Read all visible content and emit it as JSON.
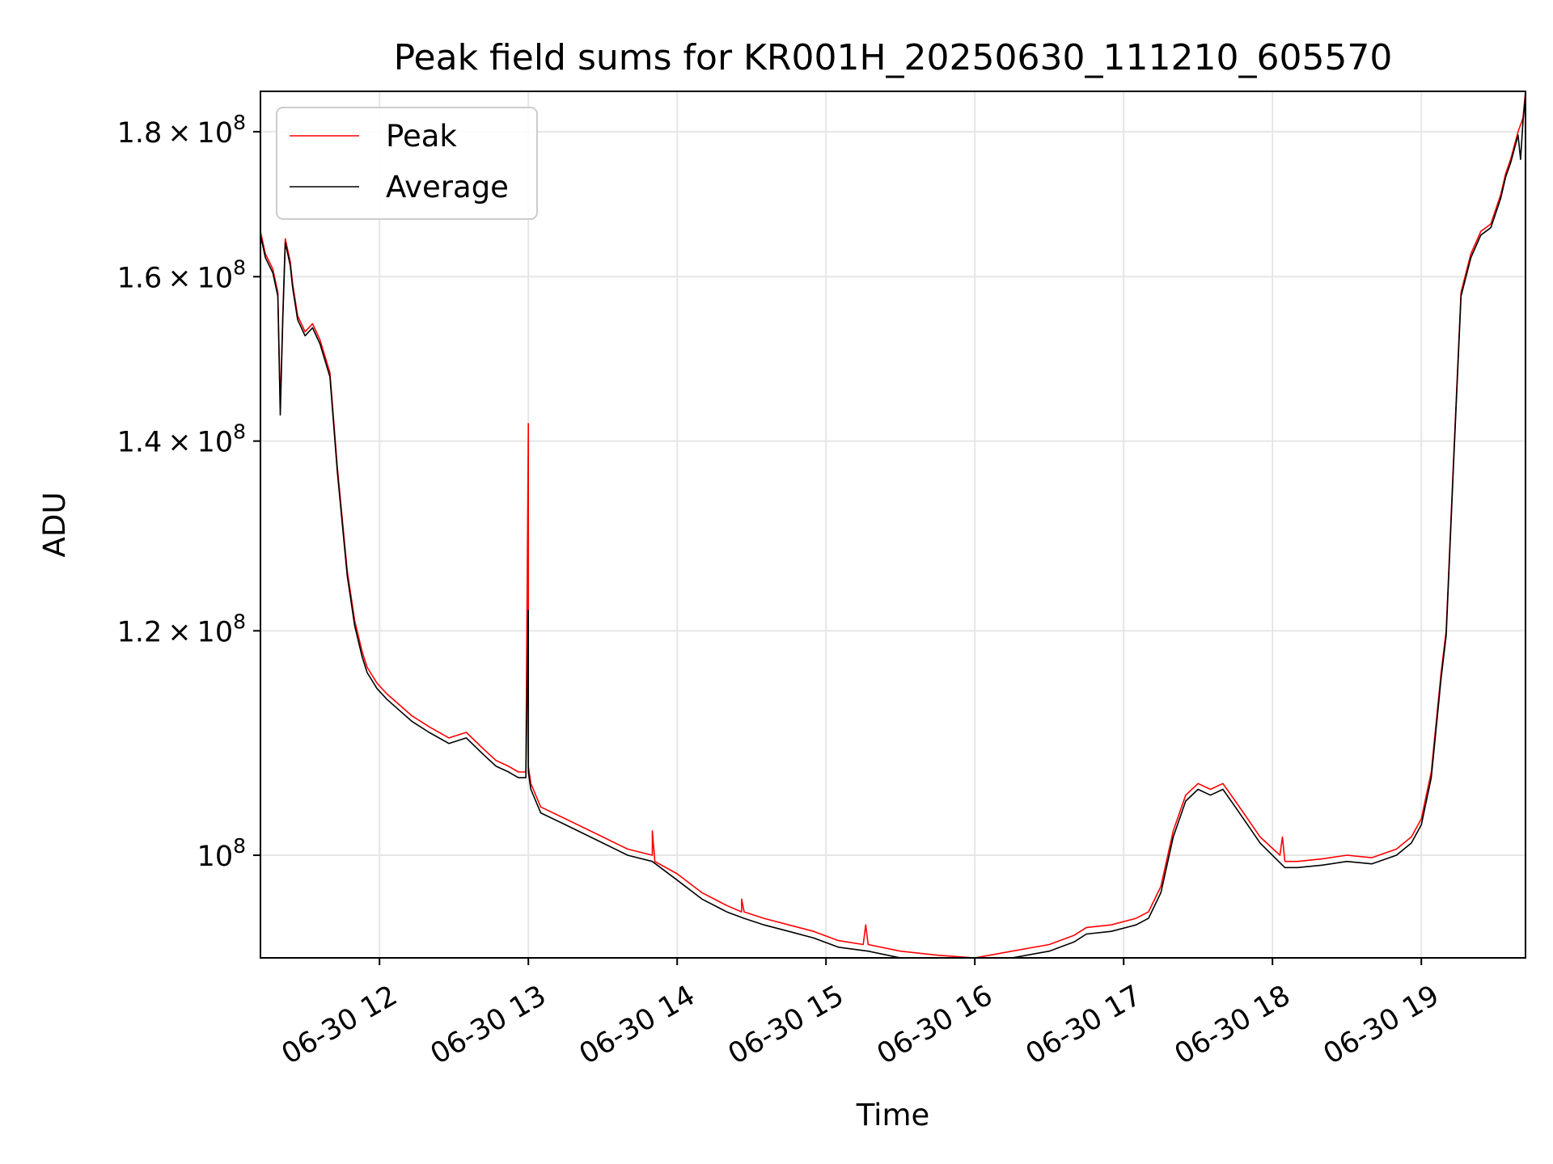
{
  "chart_data": {
    "type": "line",
    "title": "Peak field sums for KR001H_20250630_111210_605570",
    "xlabel": "Time",
    "ylabel": "ADU",
    "y_scale": "log",
    "grid": true,
    "legend_position": "top-left",
    "x_range": [
      "06-30 11:12",
      "06-30 19:42"
    ],
    "ylim": [
      92000000.0,
      186000000.0
    ],
    "x_ticks": [
      {
        "label": "06-30 12",
        "time": "12:00"
      },
      {
        "label": "06-30 13",
        "time": "13:00"
      },
      {
        "label": "06-30 14",
        "time": "14:00"
      },
      {
        "label": "06-30 15",
        "time": "15:00"
      },
      {
        "label": "06-30 16",
        "time": "16:00"
      },
      {
        "label": "06-30 17",
        "time": "17:00"
      },
      {
        "label": "06-30 18",
        "time": "18:00"
      },
      {
        "label": "06-30 19",
        "time": "19:00"
      }
    ],
    "y_ticks": [
      {
        "value": 100000000,
        "mantissa": "",
        "exponent": "8"
      },
      {
        "value": 120000000,
        "mantissa": "1.2",
        "exponent": "8"
      },
      {
        "value": 140000000,
        "mantissa": "1.4",
        "exponent": "8"
      },
      {
        "value": 160000000,
        "mantissa": "1.6",
        "exponent": "8"
      },
      {
        "value": 180000000,
        "mantissa": "1.8",
        "exponent": "8"
      }
    ],
    "tick_base": "10",
    "series": [
      {
        "name": "Peak",
        "color": "#ff0000",
        "x": [
          "11:12",
          "11:14",
          "11:17",
          "11:19",
          "11:20",
          "11:21",
          "11:22",
          "11:24",
          "11:25",
          "11:27",
          "11:30",
          "11:33",
          "11:36",
          "11:40",
          "11:43",
          "11:47",
          "11:50",
          "11:53",
          "11:55",
          "11:59",
          "12:03",
          "12:08",
          "12:13",
          "12:20",
          "12:28",
          "12:35",
          "12:42",
          "12:47",
          "12:52",
          "12:56",
          "12:59",
          "13:00",
          "13:00",
          "13:01",
          "13:05",
          "13:15",
          "13:30",
          "13:40",
          "13:50",
          "13:50",
          "13:51",
          "14:00",
          "14:10",
          "14:20",
          "14:26",
          "14:26",
          "14:27",
          "14:35",
          "14:45",
          "14:55",
          "15:05",
          "15:15",
          "15:16",
          "15:17",
          "15:30",
          "15:45",
          "16:00",
          "16:15",
          "16:30",
          "16:40",
          "16:45",
          "16:55",
          "17:05",
          "17:10",
          "17:15",
          "17:20",
          "17:25",
          "17:30",
          "17:35",
          "17:40",
          "17:45",
          "17:50",
          "17:55",
          "18:03",
          "18:04",
          "18:05",
          "18:10",
          "18:20",
          "18:30",
          "18:40",
          "18:50",
          "18:56",
          "19:00",
          "19:04",
          "19:08",
          "19:10",
          "19:13",
          "19:16",
          "19:20",
          "19:24",
          "19:28",
          "19:32",
          "19:34",
          "19:36",
          "19:39",
          "19:41",
          "19:42"
        ],
        "y": [
          166000000.0,
          163000000.0,
          161000000.0,
          158000000.0,
          144000000.0,
          155000000.0,
          165000000.0,
          162000000.0,
          159000000.0,
          155000000.0,
          153000000.0,
          154000000.0,
          152000000.0,
          148000000.0,
          137000000.0,
          126000000.0,
          121000000.0,
          118000000.0,
          116500000.0,
          115000000.0,
          114000000.0,
          113000000.0,
          112000000.0,
          111000000.0,
          110000000.0,
          110500000.0,
          109000000.0,
          108000000.0,
          107500000.0,
          107000000.0,
          107000000.0,
          142000000.0,
          107500000.0,
          106000000.0,
          104000000.0,
          103000000.0,
          101500000.0,
          100500000.0,
          100000000.0,
          102000000.0,
          99500000.0,
          98500000.0,
          97000000.0,
          96000000.0,
          95500000.0,
          96500000.0,
          95500000.0,
          95000000.0,
          94500000.0,
          94000000.0,
          93300000.0,
          93000000.0,
          94500000.0,
          93000000.0,
          92500000.0,
          92200000.0,
          92000000.0,
          92500000.0,
          93000000.0,
          93700000.0,
          94300000.0,
          94500000.0,
          95000000.0,
          95500000.0,
          97500000.0,
          102000000.0,
          105000000.0,
          106000000.0,
          105500000.0,
          106000000.0,
          104500000.0,
          103000000.0,
          101500000.0,
          100000000.0,
          101500000.0,
          99500000.0,
          99500000.0,
          99700000.0,
          100000000.0,
          99800000.0,
          100500000.0,
          101500000.0,
          103000000.0,
          107000000.0,
          116000000.0,
          120000000.0,
          138000000.0,
          158000000.0,
          163000000.0,
          166000000.0,
          167000000.0,
          171000000.0,
          174000000.0,
          176000000.0,
          180000000.0,
          182000000.0,
          186000000.0
        ]
      },
      {
        "name": "Average",
        "color": "#000000",
        "x": [
          "11:12",
          "11:14",
          "11:17",
          "11:19",
          "11:20",
          "11:21",
          "11:22",
          "11:24",
          "11:25",
          "11:27",
          "11:30",
          "11:33",
          "11:36",
          "11:40",
          "11:43",
          "11:47",
          "11:50",
          "11:53",
          "11:55",
          "11:59",
          "12:03",
          "12:08",
          "12:13",
          "12:20",
          "12:28",
          "12:35",
          "12:42",
          "12:47",
          "12:52",
          "12:56",
          "12:59",
          "13:00",
          "13:00",
          "13:01",
          "13:05",
          "13:15",
          "13:30",
          "13:40",
          "13:50",
          "14:00",
          "14:10",
          "14:20",
          "14:27",
          "14:35",
          "14:45",
          "14:55",
          "15:05",
          "15:17",
          "15:30",
          "15:45",
          "16:00",
          "16:15",
          "16:30",
          "16:40",
          "16:45",
          "16:55",
          "17:05",
          "17:10",
          "17:15",
          "17:20",
          "17:25",
          "17:30",
          "17:35",
          "17:40",
          "17:45",
          "17:50",
          "17:55",
          "18:05",
          "18:10",
          "18:20",
          "18:30",
          "18:40",
          "18:50",
          "18:56",
          "19:00",
          "19:04",
          "19:08",
          "19:10",
          "19:13",
          "19:16",
          "19:20",
          "19:24",
          "19:28",
          "19:32",
          "19:34",
          "19:36",
          "19:39",
          "19:40",
          "19:41",
          "19:42"
        ],
        "y": [
          165500000.0,
          162500000.0,
          160500000.0,
          157500000.0,
          143000000.0,
          154500000.0,
          164500000.0,
          161500000.0,
          158500000.0,
          154500000.0,
          152500000.0,
          153500000.0,
          151500000.0,
          147500000.0,
          136500000.0,
          125500000.0,
          120500000.0,
          117500000.0,
          116000000.0,
          114500000.0,
          113500000.0,
          112500000.0,
          111500000.0,
          110500000.0,
          109500000.0,
          110000000.0,
          108500000.0,
          107500000.0,
          107000000.0,
          106500000.0,
          106500000.0,
          122000000.0,
          107000000.0,
          105500000.0,
          103500000.0,
          102500000.0,
          101000000.0,
          100000000.0,
          99500000.0,
          98000000.0,
          96500000.0,
          95500000.0,
          95000000.0,
          94500000.0,
          94000000.0,
          93500000.0,
          92800000.0,
          92500000.0,
          92000000.0,
          91800000.0,
          91600000.0,
          92000000.0,
          92500000.0,
          93200000.0,
          93800000.0,
          94000000.0,
          94500000.0,
          95000000.0,
          97000000.0,
          101500000.0,
          104500000.0,
          105500000.0,
          105000000.0,
          105500000.0,
          104000000.0,
          102500000.0,
          101000000.0,
          99000000.0,
          99000000.0,
          99200000.0,
          99500000.0,
          99300000.0,
          100000000.0,
          101000000.0,
          102500000.0,
          106500000.0,
          115500000.0,
          119500000.0,
          137500000.0,
          157500000.0,
          162500000.0,
          165500000.0,
          166500000.0,
          170500000.0,
          173500000.0,
          175500000.0,
          179500000.0,
          176000000.0,
          181500000.0,
          185500000.0
        ]
      }
    ]
  }
}
